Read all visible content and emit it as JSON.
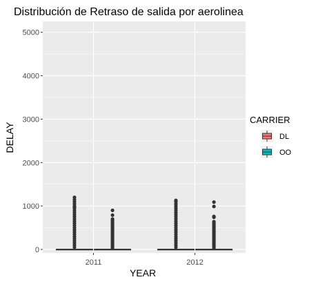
{
  "chart_data": {
    "type": "boxplot",
    "title": "Distribución de Retraso de salida por aerolinea",
    "xlabel": "YEAR",
    "ylabel": "DELAY",
    "categories": [
      "2011",
      "2012"
    ],
    "ylim": [
      -80,
      5250
    ],
    "yticks": [
      0,
      1000,
      2000,
      3000,
      4000,
      5000
    ],
    "grid": true,
    "legend": {
      "title": "CARRIER",
      "position": "right"
    },
    "series": [
      {
        "name": "DL",
        "color": "#F8766D",
        "boxes": [
          {
            "category": "2011",
            "q1": 0,
            "median": 0,
            "q3": 0,
            "whisker_low": 0,
            "whisker_high": 0,
            "outliers": [
              1200,
              1150,
              1100,
              1050,
              1000,
              980,
              950,
              900,
              850,
              800,
              750,
              700,
              650,
              600,
              550,
              500,
              450,
              400,
              350,
              300,
              250,
              200,
              150,
              100,
              50
            ]
          },
          {
            "category": "2012",
            "q1": 0,
            "median": 0,
            "q3": 0,
            "whisker_low": 0,
            "whisker_high": 0,
            "outliers": [
              1130,
              1100,
              1050,
              1000,
              950,
              900,
              850,
              800,
              750,
              700,
              650,
              600,
              550,
              500,
              450,
              400,
              350,
              300,
              250,
              200,
              150,
              100,
              50
            ]
          }
        ]
      },
      {
        "name": "OO",
        "color": "#00BFC4",
        "boxes": [
          {
            "category": "2011",
            "q1": 0,
            "median": 0,
            "q3": 0,
            "whisker_low": 0,
            "whisker_high": 0,
            "outliers": [
              900,
              790,
              700,
              680,
              650,
              620,
              600,
              570,
              540,
              510,
              480,
              450,
              420,
              390,
              360,
              330,
              300,
              270,
              240,
              210,
              180,
              150,
              120,
              90,
              60,
              30
            ]
          },
          {
            "category": "2012",
            "q1": 0,
            "median": 0,
            "q3": 0,
            "whisker_low": 0,
            "whisker_high": 0,
            "outliers": [
              1090,
              990,
              760,
              740,
              640,
              610,
              580,
              550,
              520,
              490,
              460,
              430,
              400,
              370,
              340,
              310,
              280,
              250,
              220,
              190,
              160,
              130,
              100,
              70,
              40
            ]
          }
        ]
      }
    ]
  }
}
